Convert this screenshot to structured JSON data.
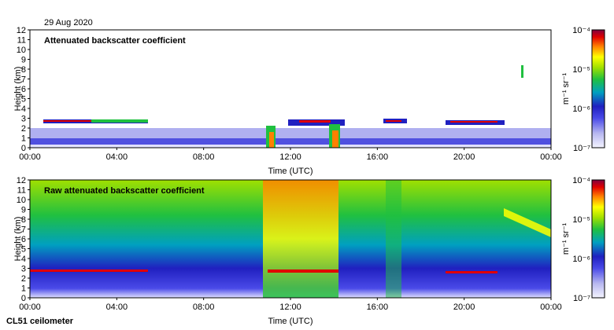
{
  "header": {
    "date": "29 Aug 2020",
    "instrument": "CL51 ceilometer"
  },
  "colorbar_unit": "m⁻¹ sr⁻¹",
  "colors": {
    "colormap": [
      "#f4f4ff",
      "#b8b8f0",
      "#4a4ae8",
      "#2020c0",
      "#00a0c0",
      "#20c040",
      "#a0e000",
      "#ffff00",
      "#ff8000",
      "#e00000",
      "#800040"
    ]
  },
  "chart_data": [
    {
      "type": "heatmap",
      "title": "Attenuated backscatter coefficient",
      "xlabel": "Time (UTC)",
      "ylabel": "Height (km)",
      "xticks": [
        "00:00",
        "04:00",
        "08:00",
        "12:00",
        "16:00",
        "20:00",
        "00:00"
      ],
      "yticks": [
        "0",
        "1",
        "2",
        "3",
        "4",
        "5",
        "6",
        "7",
        "8",
        "9",
        "10",
        "11",
        "12"
      ],
      "xlim_hours": [
        0,
        24
      ],
      "ylim_km": [
        0,
        12
      ],
      "colorbar": {
        "ticks": [
          "10⁻⁴",
          "10⁻⁵",
          "10⁻⁶",
          "10⁻⁷"
        ],
        "range": [
          1e-07,
          0.0001
        ],
        "scale": "log"
      },
      "features": [
        {
          "name": "cloud-layer",
          "t_start": 0.3,
          "t_end": 5.1,
          "height_km": 2.75
        },
        {
          "name": "cloud-layer",
          "t_start": 12.0,
          "t_end": 14.0,
          "height_km": 2.6
        },
        {
          "name": "cloud-layer",
          "t_start": 16.0,
          "t_end": 17.0,
          "height_km": 2.8
        },
        {
          "name": "cloud-layer",
          "t_start": 19.0,
          "t_end": 21.6,
          "height_km": 2.5
        },
        {
          "name": "high-cloud",
          "t_start": 22.6,
          "t_end": 22.7,
          "height_km": 7.8
        }
      ]
    },
    {
      "type": "heatmap",
      "title": "Raw attenuated backscatter coefficient",
      "xlabel": "Time (UTC)",
      "ylabel": "Height (km)",
      "xticks": [
        "00:00",
        "04:00",
        "08:00",
        "12:00",
        "16:00",
        "20:00",
        "00:00"
      ],
      "yticks": [
        "0",
        "1",
        "2",
        "3",
        "4",
        "5",
        "6",
        "7",
        "8",
        "9",
        "10",
        "11",
        "12"
      ],
      "xlim_hours": [
        0,
        24
      ],
      "ylim_km": [
        0,
        12
      ],
      "colorbar": {
        "ticks": [
          "10⁻⁴",
          "10⁻⁵",
          "10⁻⁶",
          "10⁻⁷"
        ],
        "range": [
          1e-07,
          0.0001
        ],
        "scale": "log"
      }
    }
  ]
}
